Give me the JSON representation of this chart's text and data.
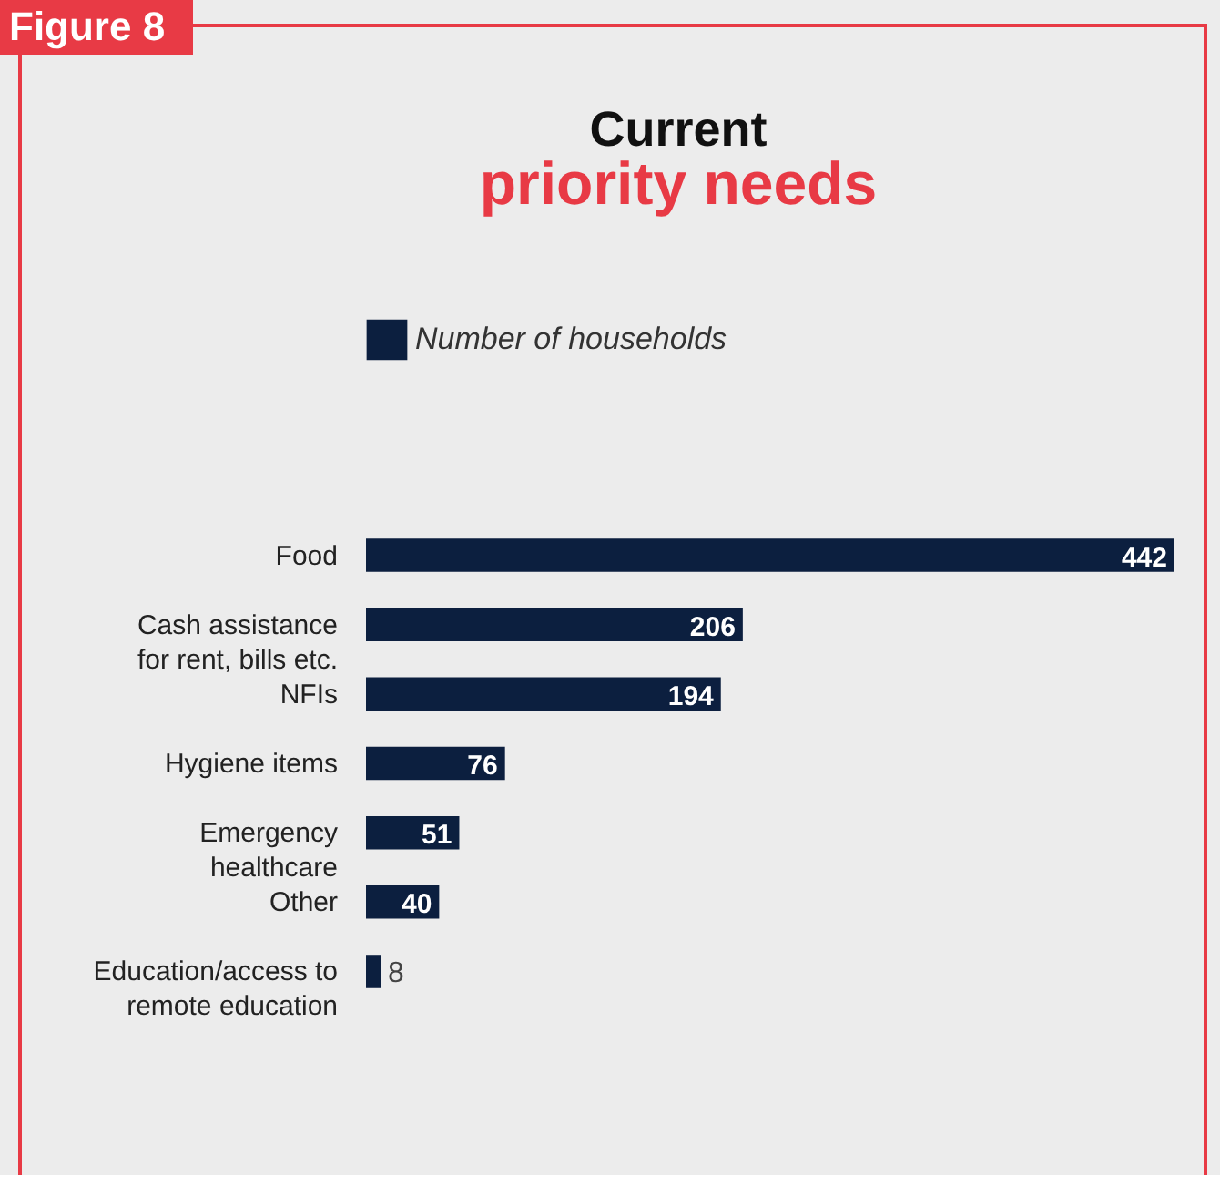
{
  "chart_data": {
    "type": "bar",
    "orientation": "horizontal",
    "title": "Current",
    "subtitle": "priority needs",
    "categories": [
      "Food",
      "Cash assistance\nfor rent, bills etc.",
      "NFIs",
      "Hygiene items",
      "Emergency\nhealthcare",
      "Other",
      "Education/access to\nremote education"
    ],
    "series": [
      {
        "name": "Number of households",
        "color": "#0c1f3f",
        "values": [
          442,
          206,
          194,
          76,
          51,
          40,
          8
        ]
      }
    ],
    "data_labels": true,
    "legend": "top",
    "annotations": [
      "Figure 8"
    ]
  }
}
